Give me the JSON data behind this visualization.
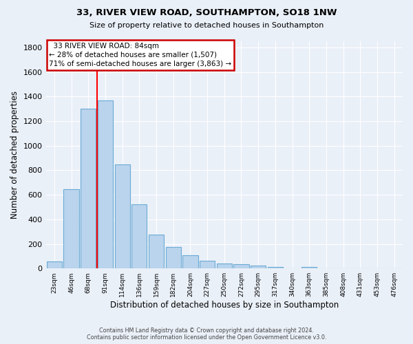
{
  "title": "33, RIVER VIEW ROAD, SOUTHAMPTON, SO18 1NW",
  "subtitle": "Size of property relative to detached houses in Southampton",
  "xlabel": "Distribution of detached houses by size in Southampton",
  "ylabel": "Number of detached properties",
  "footer_line1": "Contains HM Land Registry data © Crown copyright and database right 2024.",
  "footer_line2": "Contains public sector information licensed under the Open Government Licence v3.0.",
  "bar_labels": [
    "23sqm",
    "46sqm",
    "68sqm",
    "91sqm",
    "114sqm",
    "136sqm",
    "159sqm",
    "182sqm",
    "204sqm",
    "227sqm",
    "250sqm",
    "272sqm",
    "295sqm",
    "317sqm",
    "340sqm",
    "363sqm",
    "385sqm",
    "408sqm",
    "431sqm",
    "453sqm",
    "476sqm"
  ],
  "bar_values": [
    55,
    645,
    1300,
    1370,
    845,
    525,
    275,
    175,
    105,
    65,
    40,
    35,
    25,
    15,
    0,
    10,
    0,
    0,
    0,
    0,
    0
  ],
  "bar_color": "#bad4ed",
  "bar_edge_color": "#6aaad4",
  "bg_color": "#eaf0f8",
  "grid_color": "#ffffff",
  "red_line_x": 2.5,
  "annotation_text": "  33 RIVER VIEW ROAD: 84sqm\n← 28% of detached houses are smaller (1,507)\n71% of semi-detached houses are larger (3,863) →",
  "annotation_box_color": "#ffffff",
  "annotation_box_edge": "#cc0000",
  "ylim": [
    0,
    1850
  ],
  "yticks": [
    0,
    200,
    400,
    600,
    800,
    1000,
    1200,
    1400,
    1600,
    1800
  ]
}
